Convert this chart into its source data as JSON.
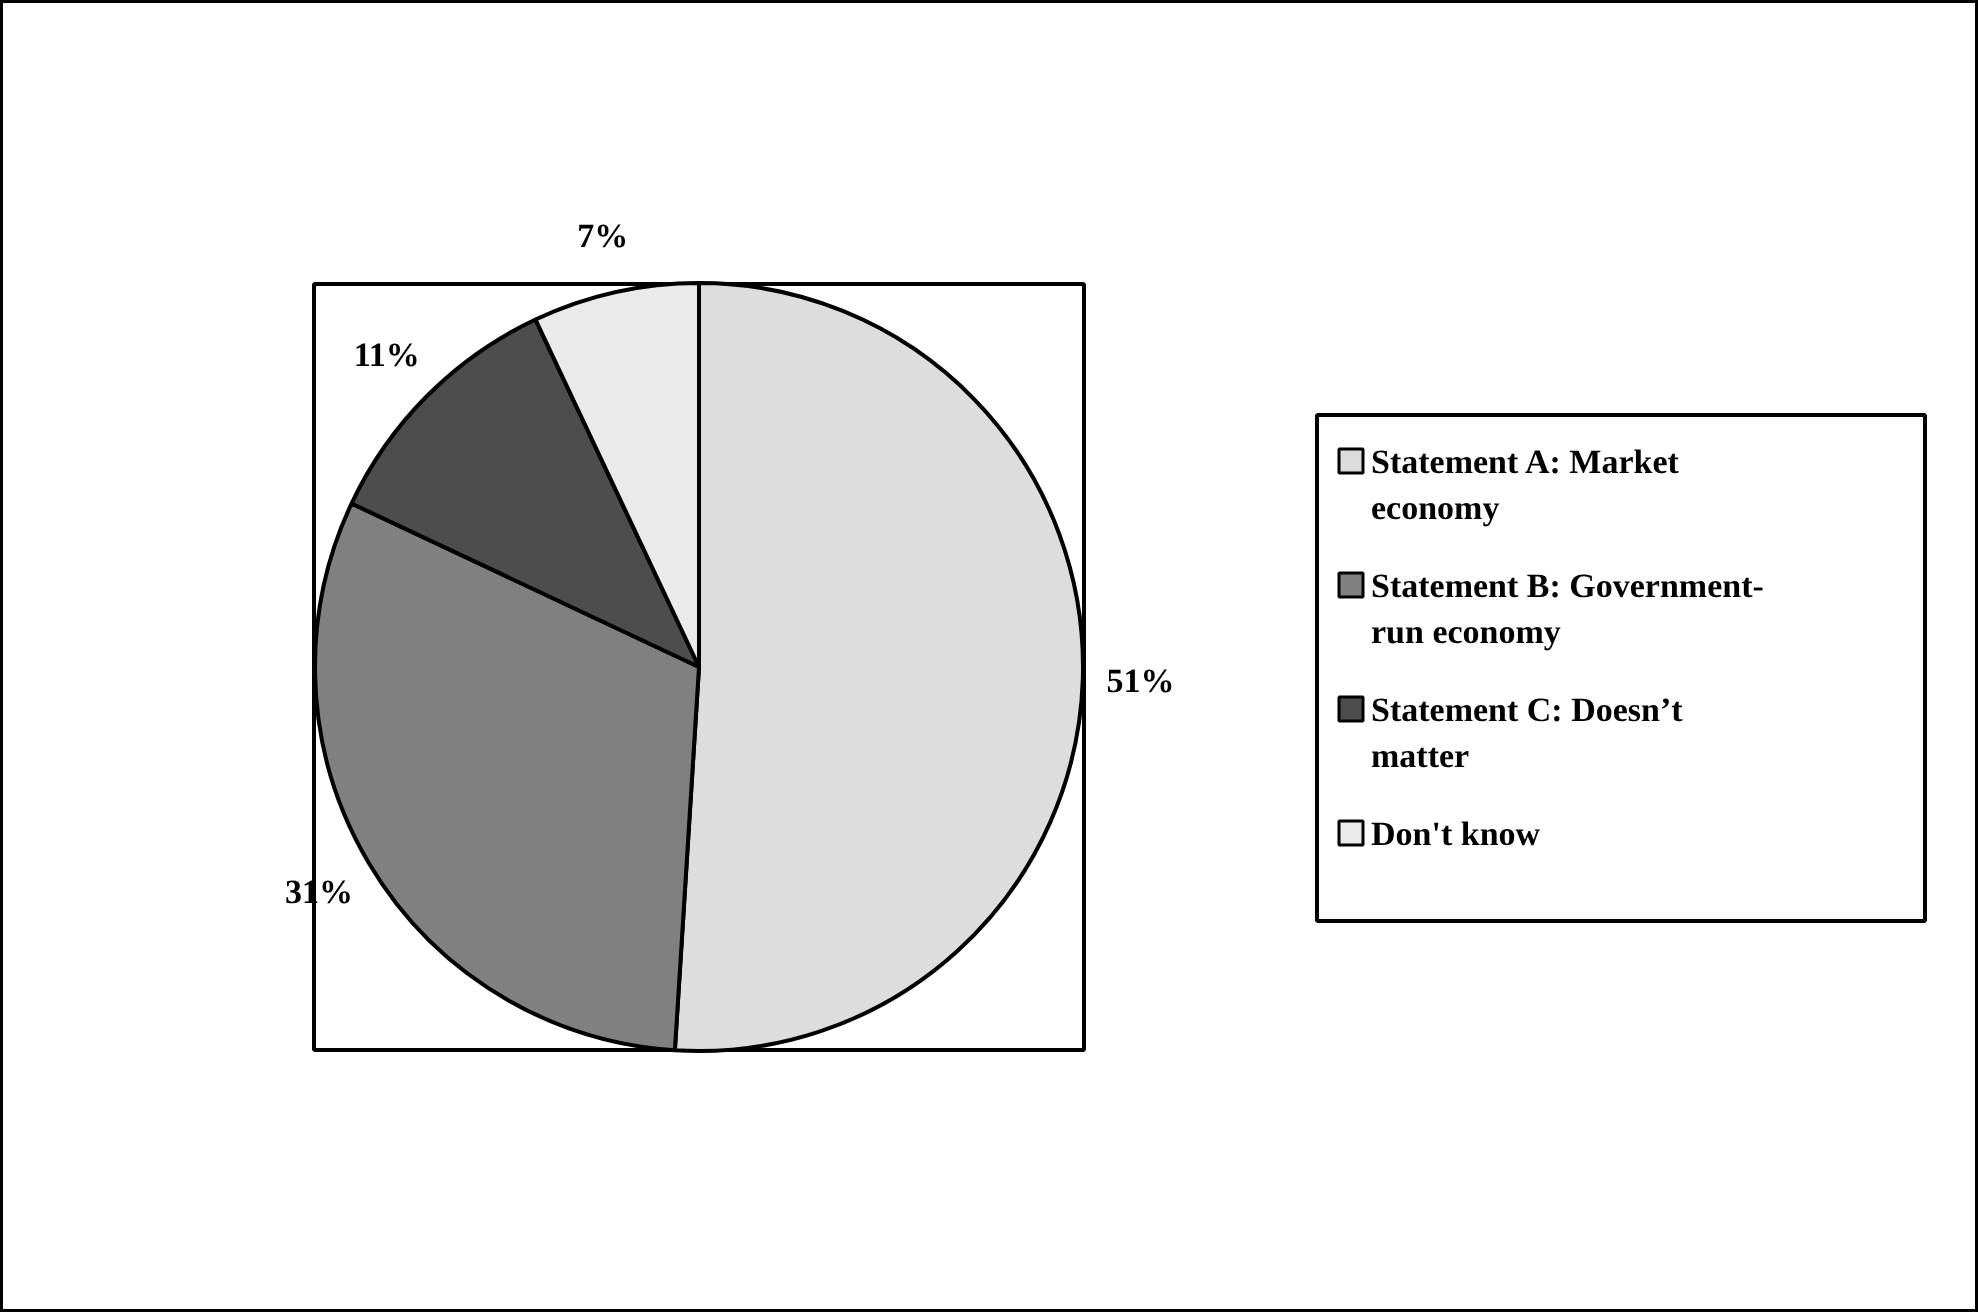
{
  "chart_data": {
    "type": "pie",
    "categories": [
      "Statement A: Market economy",
      "Statement B: Government-run economy",
      "Statement C: Doesn’t matter",
      "Don't know"
    ],
    "values": [
      51,
      31,
      11,
      7
    ],
    "colors": [
      "#dddddd",
      "#808080",
      "#4d4d4d",
      "#eaeaea"
    ],
    "value_labels": [
      "51%",
      "31%",
      "11%",
      "7%"
    ],
    "legend": "right"
  }
}
